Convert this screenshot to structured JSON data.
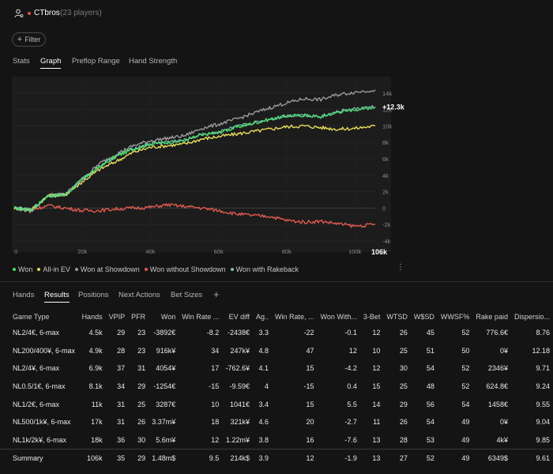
{
  "header": {
    "player_name": "CTbros",
    "player_count": "(23 players)"
  },
  "filter": {
    "label": "Filter"
  },
  "top_tabs": [
    "Stats",
    "Graph",
    "Preflop Range",
    "Hand Strength"
  ],
  "top_tabs_active": 1,
  "chart_data": {
    "type": "line",
    "x_ticks": [
      "0",
      "20k",
      "40k",
      "60k",
      "80k",
      "100k"
    ],
    "x_end_label": "106k",
    "xlim": [
      0,
      106000
    ],
    "y_ticks": [
      "14k",
      "12k",
      "10k",
      "8k",
      "6k",
      "4k",
      "2k",
      "0",
      "-2k",
      "-4k"
    ],
    "ylim": [
      -4000,
      16000
    ],
    "final_value_label": "+12.3k",
    "series": [
      {
        "name": "Won",
        "color": "#4cdc6a",
        "x": [
          0,
          5000,
          10000,
          15000,
          20000,
          25000,
          30000,
          35000,
          40000,
          45000,
          50000,
          55000,
          60000,
          65000,
          70000,
          75000,
          80000,
          85000,
          90000,
          95000,
          100000,
          106000
        ],
        "values": [
          0,
          -200,
          1500,
          1600,
          3500,
          5000,
          6300,
          7200,
          7800,
          8000,
          8200,
          8900,
          9200,
          9800,
          10300,
          10800,
          11200,
          11300,
          11100,
          11700,
          12000,
          12300
        ]
      },
      {
        "name": "All-in EV",
        "color": "#e6dc5a",
        "x": [
          0,
          5000,
          10000,
          15000,
          20000,
          25000,
          30000,
          35000,
          40000,
          45000,
          50000,
          55000,
          60000,
          65000,
          70000,
          75000,
          80000,
          85000,
          90000,
          95000,
          100000,
          106000
        ],
        "values": [
          0,
          -200,
          1500,
          1600,
          3200,
          4700,
          5700,
          6800,
          7400,
          7600,
          7800,
          8400,
          8700,
          9000,
          9300,
          9600,
          9900,
          10000,
          9800,
          9600,
          9700,
          10000
        ]
      },
      {
        "name": "Won at Showdown",
        "color": "#9a9a9a",
        "x": [
          0,
          5000,
          10000,
          15000,
          20000,
          25000,
          30000,
          35000,
          40000,
          45000,
          50000,
          55000,
          60000,
          65000,
          70000,
          75000,
          80000,
          85000,
          90000,
          95000,
          100000,
          106000
        ],
        "values": [
          0,
          -400,
          1600,
          1700,
          3500,
          5400,
          6600,
          7600,
          8200,
          8500,
          8800,
          9700,
          10200,
          10800,
          11500,
          12200,
          12800,
          13300,
          13200,
          13800,
          14100,
          14400
        ]
      },
      {
        "name": "Won without Showdown",
        "color": "#e05a4e",
        "x": [
          0,
          5000,
          10000,
          15000,
          20000,
          25000,
          30000,
          35000,
          40000,
          45000,
          50000,
          55000,
          60000,
          65000,
          70000,
          75000,
          80000,
          85000,
          90000,
          95000,
          100000,
          106000
        ],
        "values": [
          0,
          -200,
          300,
          0,
          -300,
          -300,
          -100,
          0,
          100,
          400,
          200,
          0,
          -300,
          -700,
          -900,
          -1000,
          -1500,
          -1700,
          -1600,
          -1900,
          -2200,
          -2000
        ]
      },
      {
        "name": "Won with Rakeback",
        "color": "#7fc0c0",
        "x": [
          0,
          5000,
          10000,
          15000,
          20000,
          25000,
          30000,
          35000,
          40000,
          45000,
          50000,
          55000,
          60000,
          65000,
          70000,
          75000,
          80000,
          85000,
          90000,
          95000,
          100000,
          106000
        ],
        "values": [
          0,
          -200,
          1550,
          1650,
          3550,
          5050,
          6350,
          7250,
          7850,
          8050,
          8250,
          8950,
          9250,
          9850,
          10350,
          10850,
          11250,
          11350,
          11150,
          11750,
          12050,
          12350
        ]
      }
    ]
  },
  "legend": [
    {
      "label": "Won",
      "color": "#4cdc6a"
    },
    {
      "label": "All-in EV",
      "color": "#e6dc5a"
    },
    {
      "label": "Won at Showdown",
      "color": "#9a9a9a"
    },
    {
      "label": "Won without Showdown",
      "color": "#e05a4e"
    },
    {
      "label": "Won with Rakeback",
      "color": "#7fc0c0"
    }
  ],
  "bottom_tabs": [
    "Hands",
    "Results",
    "Positions",
    "Next Actions",
    "Bet Sizes"
  ],
  "bottom_tabs_active": 1,
  "add_tab_label": "+",
  "table": {
    "headers": [
      "Game Type",
      "Hands",
      "VPIP",
      "PFR",
      "Won",
      "Win Rate ...",
      "EV diff",
      "Ag..",
      "Win Rate, ...",
      "Won With...",
      "3-Bet",
      "WTSD",
      "W$SD",
      "WWSF%",
      "Rake paid",
      "Dispersio..."
    ],
    "rows": [
      [
        "NL2/4€, 6-max",
        "4.5k",
        "29",
        "23",
        "-3892€",
        "-8.2",
        "-2438€",
        "3.3",
        "-22",
        "-0.1",
        "12",
        "26",
        "45",
        "52",
        "776.6€",
        "8.76"
      ],
      [
        "NL200/400¥, 6-max",
        "4.9k",
        "28",
        "23",
        "916k¥",
        "34",
        "247k¥",
        "4.8",
        "47",
        "12",
        "10",
        "25",
        "51",
        "50",
        "0¥",
        "12.18"
      ],
      [
        "NL2/4¥, 6-max",
        "6.9k",
        "37",
        "31",
        "4054¥",
        "17",
        "-762.6¥",
        "4.1",
        "15",
        "-4.2",
        "12",
        "30",
        "54",
        "52",
        "2346¥",
        "9.71"
      ],
      [
        "NL0.5/1€, 6-max",
        "8.1k",
        "34",
        "29",
        "-1254€",
        "-15",
        "-9.59€",
        "4",
        "-15",
        "0.4",
        "15",
        "25",
        "48",
        "52",
        "624.8€",
        "9.24"
      ],
      [
        "NL1/2€, 6-max",
        "11k",
        "31",
        "25",
        "3287€",
        "10",
        "1041€",
        "3.4",
        "15",
        "5.5",
        "14",
        "29",
        "56",
        "54",
        "1458€",
        "9.55"
      ],
      [
        "NL500/1k¥, 6-max",
        "17k",
        "31",
        "26",
        "3.37m¥",
        "18",
        "321k¥",
        "4.6",
        "20",
        "-2.7",
        "11",
        "26",
        "54",
        "49",
        "0¥",
        "9.04"
      ],
      [
        "NL1k/2k¥, 6-max",
        "18k",
        "36",
        "30",
        "5.6m¥",
        "12",
        "1.22m¥",
        "3.8",
        "16",
        "-7.6",
        "13",
        "28",
        "53",
        "49",
        "4k¥",
        "9.85"
      ]
    ],
    "summary": [
      "Summary",
      "106k",
      "35",
      "29",
      "1.48m$",
      "9.5",
      "214k$",
      "3.9",
      "12",
      "-1.9",
      "13",
      "27",
      "52",
      "49",
      "6349$",
      "9.61"
    ]
  },
  "colors": {
    "negative": "#f26d6d",
    "positive": "#a8e07a",
    "background": "#141414"
  }
}
